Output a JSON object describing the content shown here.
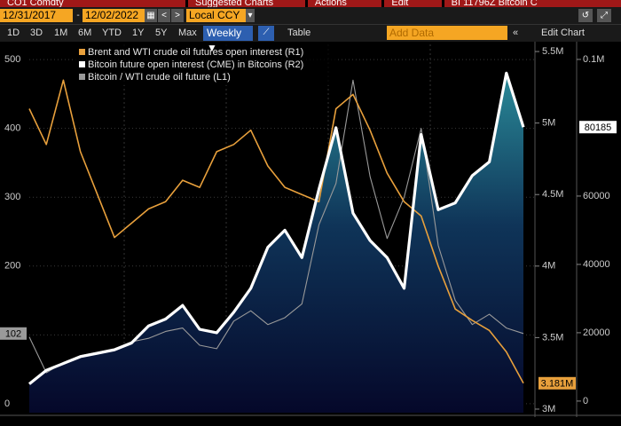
{
  "toolbar": {
    "tabs": [
      "CO1 Comdty",
      "Suggested Charts",
      "Actions",
      "Edit",
      "BI 11796Z Bitcoin C"
    ],
    "start_date": "12/31/2017",
    "separator": "-",
    "end_date": "12/02/2022",
    "currency": "Local CCY",
    "periods": [
      "1D",
      "3D",
      "1M",
      "6M",
      "YTD",
      "1Y",
      "5Y",
      "Max"
    ],
    "frequency": "Weekly ▼",
    "table": "Table",
    "add_data": "Add Data",
    "edit_chart": "Edit Chart"
  },
  "chart_data": {
    "type": "line",
    "ylim": [
      -13,
      522
    ],
    "yticks": [
      0,
      100,
      200,
      300,
      400,
      500
    ],
    "y2lim": [
      2975000,
      5550000
    ],
    "y2ticks": [
      {
        "value": 3000000,
        "label": "3M"
      },
      {
        "value": 3500000,
        "label": "3.5M"
      },
      {
        "value": 4000000,
        "label": "4M"
      },
      {
        "value": 4500000,
        "label": "4.5M"
      },
      {
        "value": 5000000,
        "label": "5M"
      },
      {
        "value": 5500000,
        "label": "5.5M"
      }
    ],
    "y3lim": [
      -3400,
      104400
    ],
    "y3ticks": [
      0,
      20000,
      40000,
      60000,
      {
        "value": 100000,
        "label": "0.1M"
      }
    ],
    "series": [
      {
        "name": "Brent and WTI crude oil futures open interest (R1)",
        "color": "#e8a03c",
        "axis": "y2",
        "values": [
          5100000,
          4850000,
          5300000,
          4800000,
          4500000,
          4200000,
          4300000,
          4400000,
          4450000,
          4600000,
          4550000,
          4800000,
          4850000,
          4950000,
          4700000,
          4550000,
          4500000,
          4450000,
          5100000,
          5200000,
          4950000,
          4650000,
          4450000,
          4350000,
          4000000,
          3700000,
          3620000,
          3550000,
          3400000,
          3181000
        ],
        "last_label": "3.181M"
      },
      {
        "name": "Bitcoin future open interest (CME) in Bitcoins (R2)",
        "color": "#ffffff",
        "axis": "y3",
        "values": [
          5000,
          9000,
          11000,
          13000,
          14000,
          15000,
          17000,
          22000,
          24000,
          28000,
          21000,
          20000,
          26000,
          33000,
          45000,
          50000,
          42000,
          62000,
          80000,
          55000,
          47000,
          42000,
          33000,
          78000,
          56000,
          58000,
          66000,
          70000,
          96000,
          80185
        ]
      },
      {
        "name": "Bitcoin / WTI crude oil future (L1)",
        "color": "#9a9a9a",
        "axis": "y",
        "values": [
          97,
          45,
          60,
          70,
          75,
          80,
          90,
          95,
          105,
          110,
          85,
          80,
          120,
          135,
          115,
          125,
          145,
          260,
          320,
          470,
          330,
          240,
          300,
          400,
          230,
          150,
          115,
          130,
          110,
          102
        ]
      }
    ]
  }
}
